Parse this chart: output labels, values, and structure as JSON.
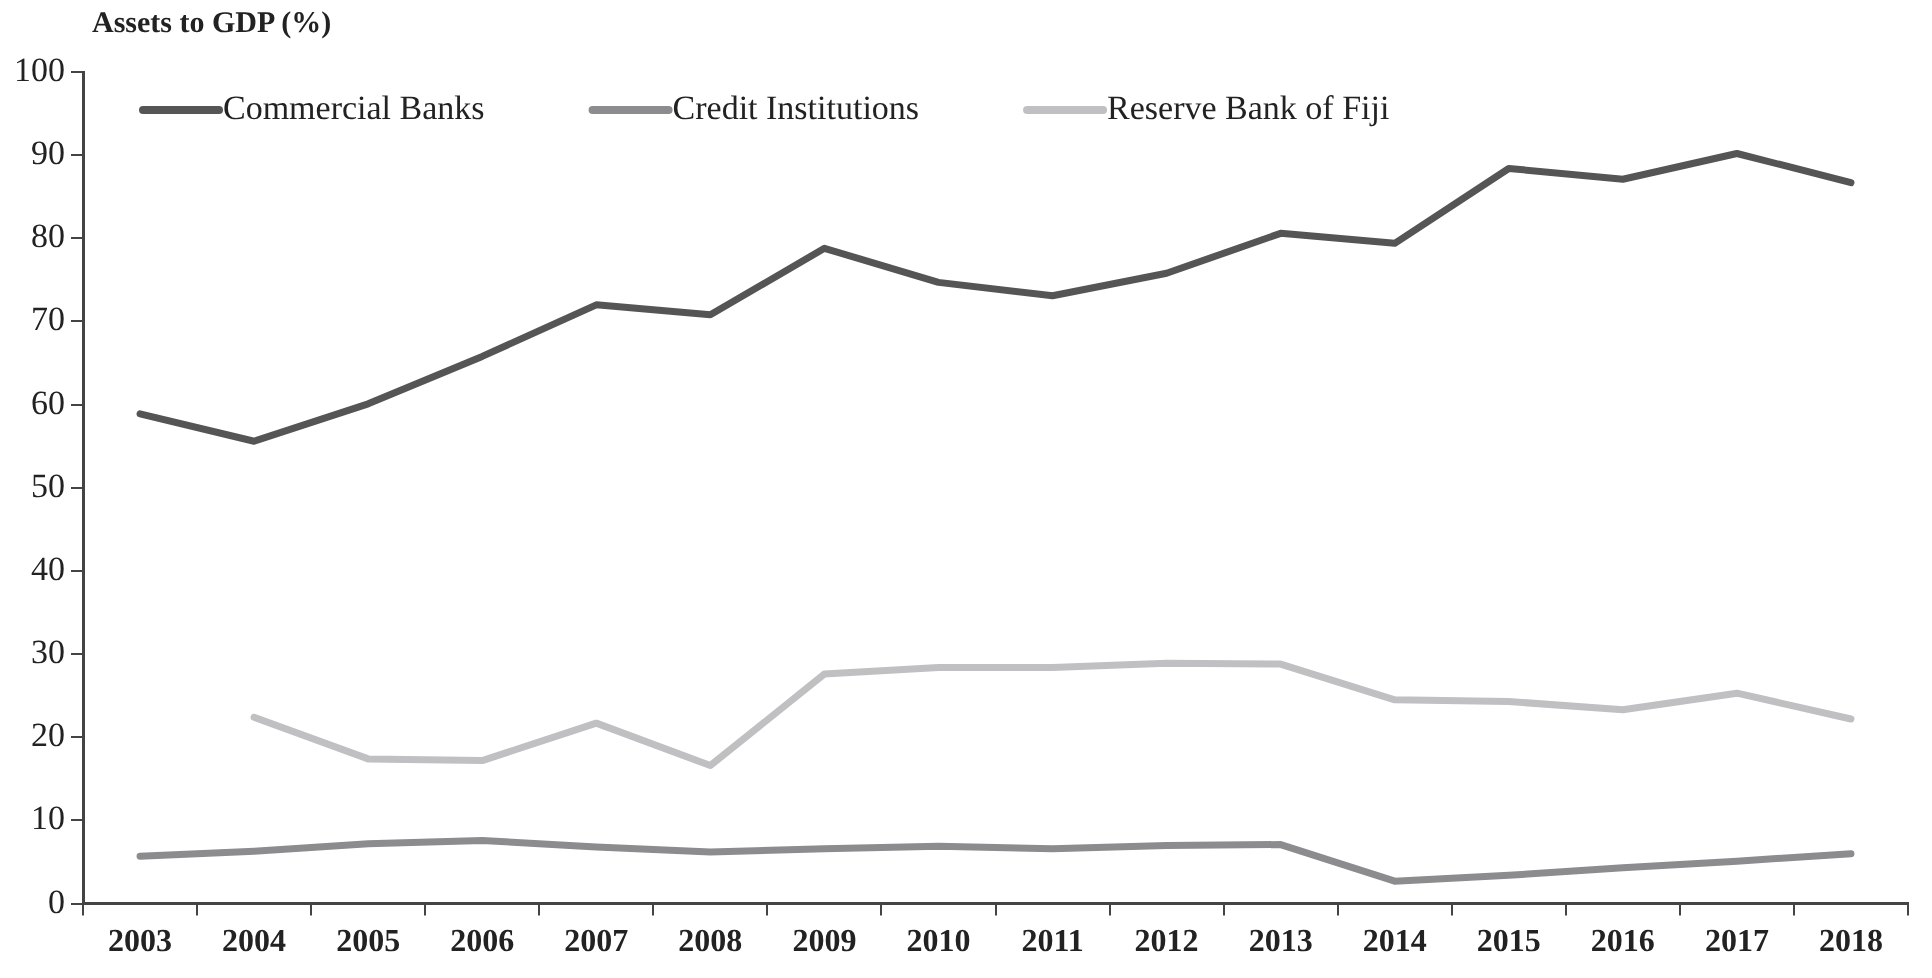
{
  "chart_data": {
    "type": "line",
    "ylabel": "Assets to GDP (%)",
    "categories": [
      "2003",
      "2004",
      "2005",
      "2006",
      "2007",
      "2008",
      "2009",
      "2010",
      "2011",
      "2012",
      "2013",
      "2014",
      "2015",
      "2016",
      "2017",
      "2018"
    ],
    "series": [
      {
        "name": "Commercial Banks",
        "color": "#555555",
        "values": [
          58.9,
          55.6,
          60.1,
          65.8,
          72.0,
          70.8,
          78.8,
          74.7,
          73.1,
          75.8,
          80.6,
          79.4,
          88.4,
          87.1,
          90.2,
          86.7
        ]
      },
      {
        "name": "Credit Institutions",
        "color": "#8c8c8e",
        "values": [
          5.7,
          6.3,
          7.2,
          7.6,
          6.8,
          6.2,
          6.6,
          6.9,
          6.6,
          7.0,
          7.1,
          2.7,
          3.4,
          4.3,
          5.1,
          6.0
        ]
      },
      {
        "name": "Reserve Bank of Fiji",
        "color": "#c0c0c2",
        "values": [
          null,
          22.4,
          17.4,
          17.2,
          21.7,
          16.6,
          27.6,
          28.4,
          28.4,
          28.9,
          28.8,
          24.5,
          24.3,
          23.3,
          25.3,
          22.2
        ]
      }
    ],
    "ylim": [
      0,
      100
    ],
    "yticks": [
      0,
      10,
      20,
      30,
      40,
      50,
      60,
      70,
      80,
      90,
      100
    ],
    "grid": false,
    "legend": "top left",
    "marker": "none",
    "line_style": "solid"
  }
}
